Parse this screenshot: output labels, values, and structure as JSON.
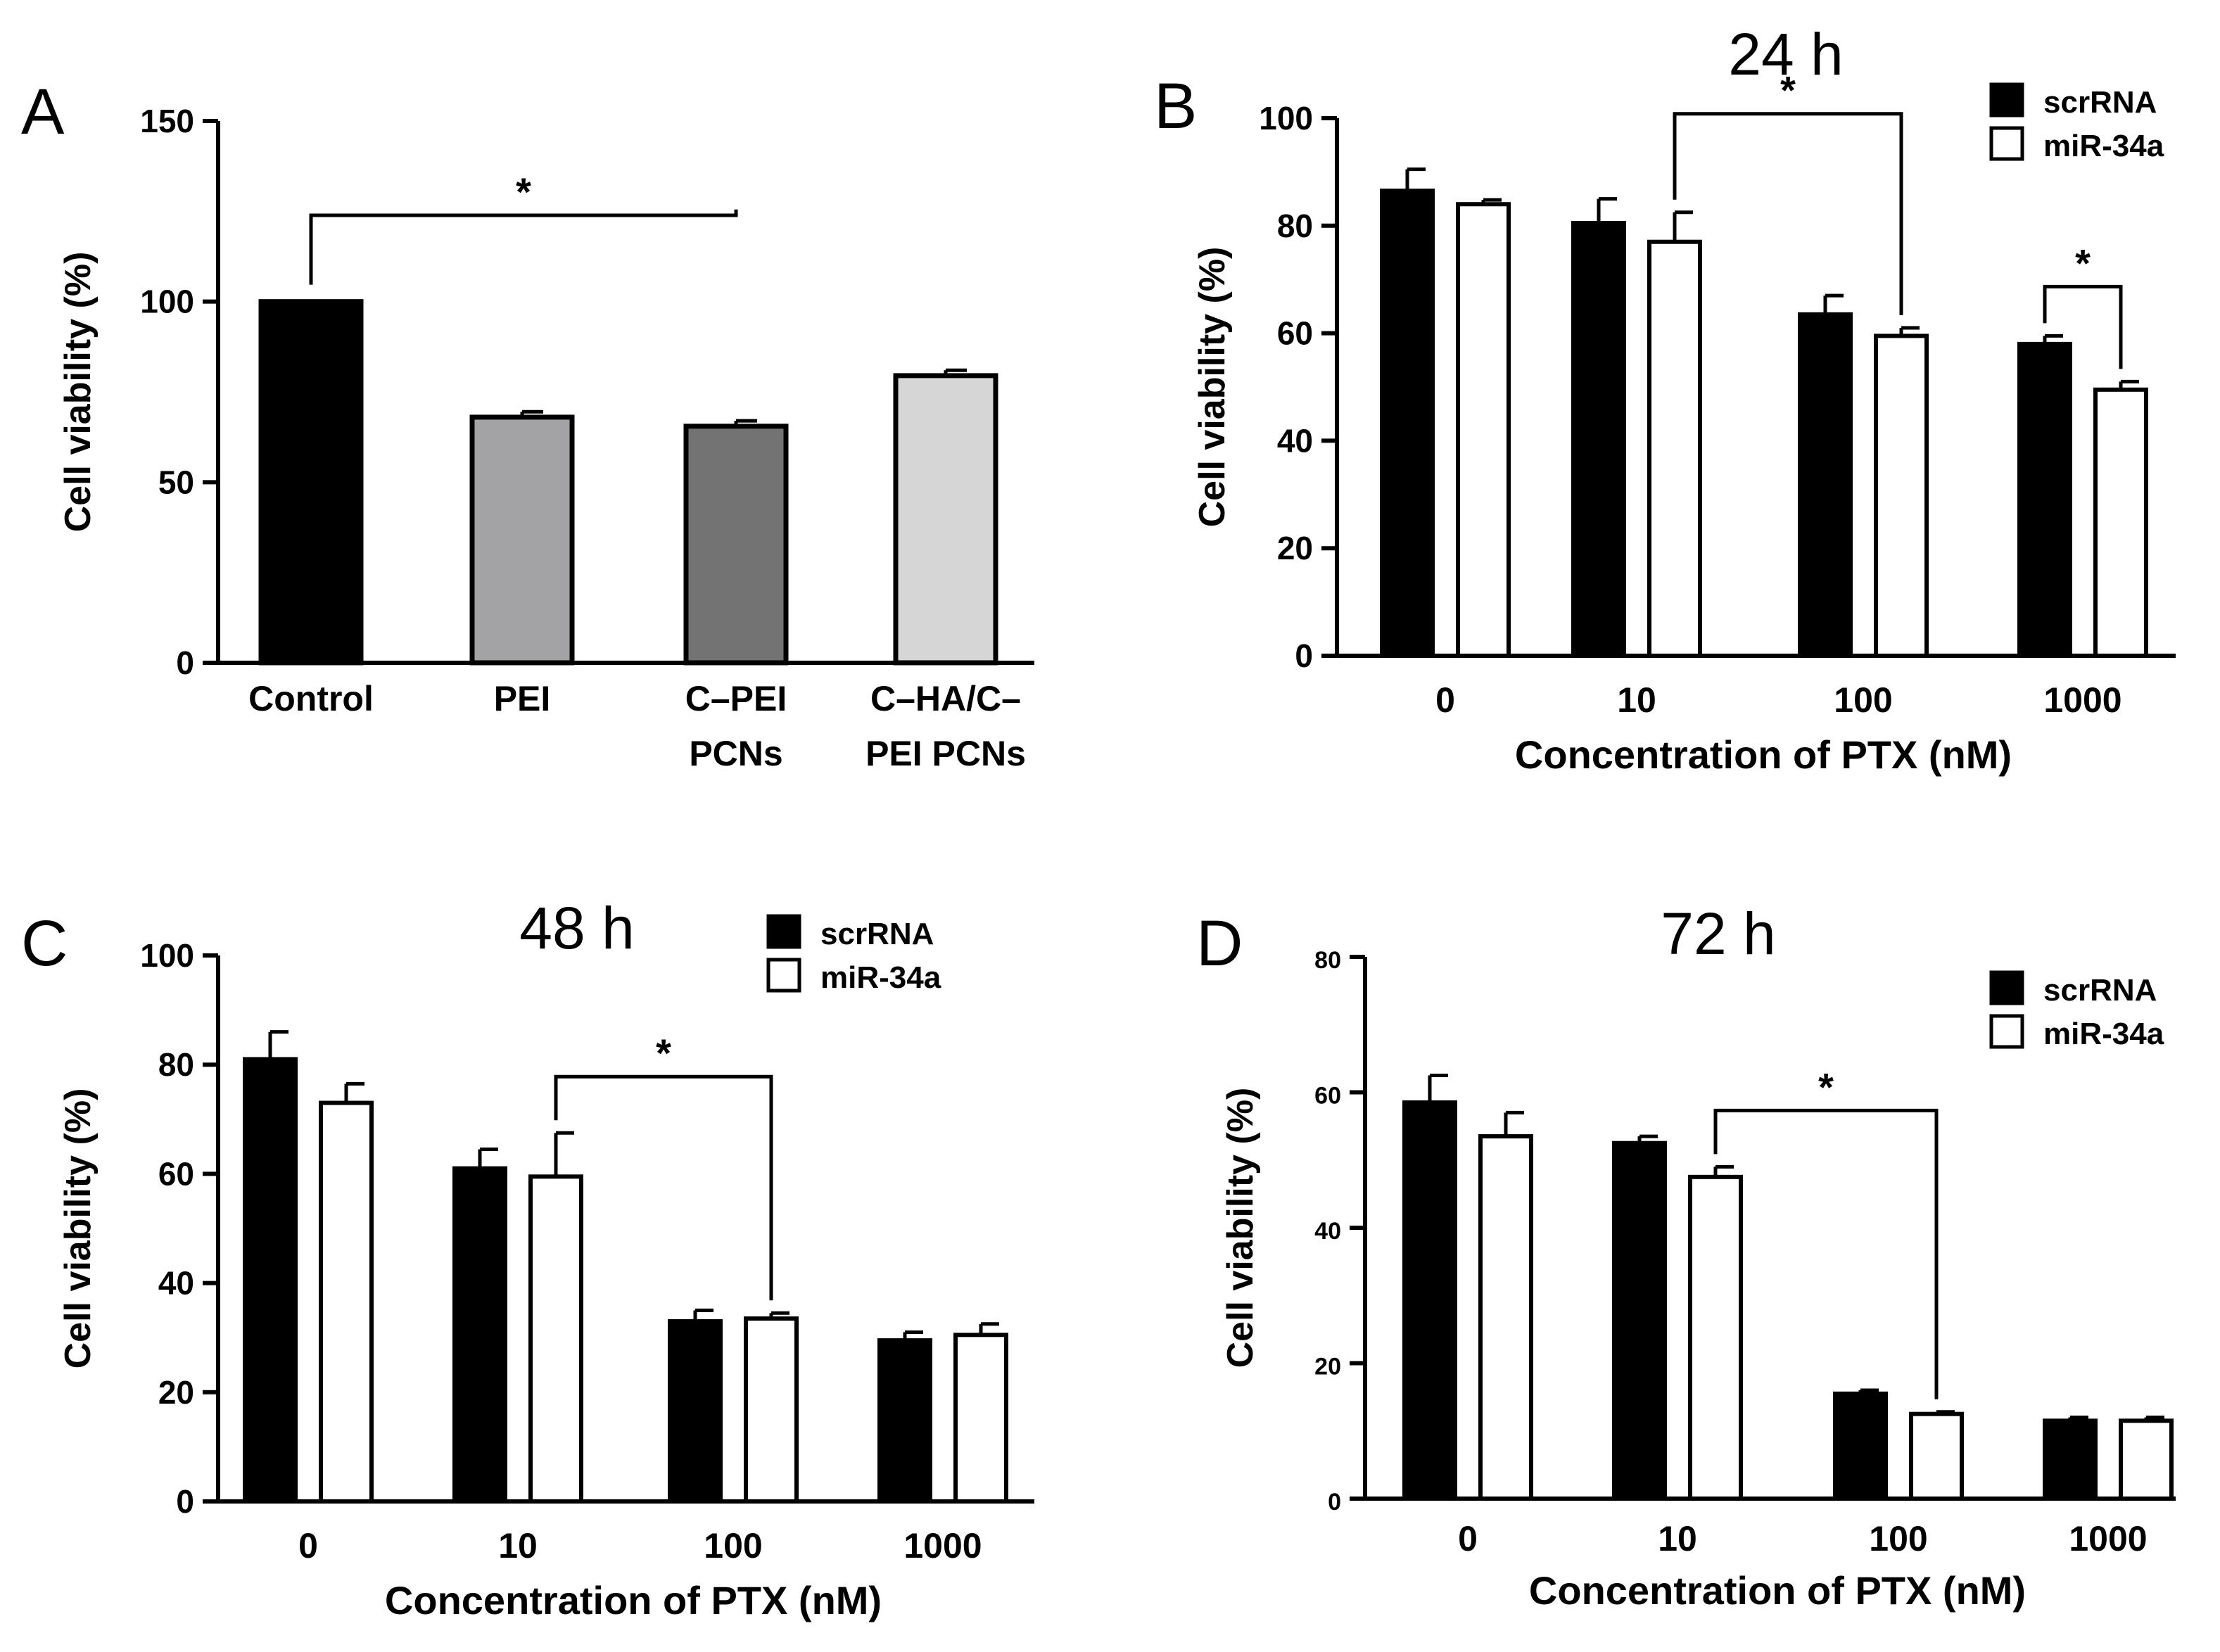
{
  "chart_data": [
    {
      "panel": "A",
      "type": "bar",
      "title": "",
      "ylabel": "Cell viability (%)",
      "xlabel": "",
      "ylim": [
        0,
        150
      ],
      "yticks": [
        "0",
        "50",
        "100",
        "150"
      ],
      "categories": [
        [
          "Control"
        ],
        [
          "PEI"
        ],
        [
          "C–PEI",
          "PCNs"
        ],
        [
          "C–HA/C–",
          "PEI PCNs"
        ]
      ],
      "values": [
        100,
        68,
        65.5,
        79.5
      ],
      "errors": [
        0,
        1.5,
        1.5,
        1.5
      ],
      "colors": [
        "#000000",
        "#a3a3a5",
        "#737373",
        "#d6d6d6"
      ],
      "significance": [
        {
          "from": 0,
          "to": 2,
          "label": "*"
        }
      ]
    },
    {
      "panel": "B",
      "type": "bar",
      "title": "24 h",
      "ylabel": "Cell viability (%)",
      "xlabel": "Concentration of PTX (nM)",
      "ylim": [
        0,
        100
      ],
      "yticks": [
        "0",
        "20",
        "40",
        "60",
        "80",
        "100"
      ],
      "categories": [
        "0",
        "10",
        "100",
        "1000"
      ],
      "legend": [
        "scrRNA",
        "miR-34a"
      ],
      "series": [
        {
          "name": "scrRNA",
          "values": [
            86.5,
            80.5,
            63.5,
            58
          ],
          "errors": [
            4,
            4.5,
            3.5,
            1.5
          ]
        },
        {
          "name": "miR-34a",
          "values": [
            84,
            77,
            59.5,
            49.5
          ],
          "errors": [
            0.8,
            5.5,
            1.5,
            1.5
          ]
        }
      ],
      "significance": [
        {
          "from": [
            1,
            1
          ],
          "to": [
            2,
            1
          ],
          "label": "*"
        },
        {
          "from": [
            3,
            0
          ],
          "to": [
            3,
            1
          ],
          "label": "*"
        }
      ]
    },
    {
      "panel": "C",
      "type": "bar",
      "title": "48 h",
      "ylabel": "Cell viability (%)",
      "xlabel": "Concentration of PTX (nM)",
      "ylim": [
        0,
        100
      ],
      "yticks": [
        "0",
        "20",
        "40",
        "60",
        "80",
        "100"
      ],
      "categories": [
        "0",
        "10",
        "100",
        "1000"
      ],
      "legend": [
        "scrRNA",
        "miR-34a"
      ],
      "series": [
        {
          "name": "scrRNA",
          "values": [
            81,
            61,
            33,
            29.5
          ],
          "errors": [
            5,
            3.5,
            2,
            1.5
          ]
        },
        {
          "name": "miR-34a",
          "values": [
            73,
            59.5,
            33.5,
            30.5
          ],
          "errors": [
            3.5,
            8,
            1,
            2
          ]
        }
      ],
      "significance": [
        {
          "from": [
            1,
            1
          ],
          "to": [
            2,
            1
          ],
          "label": "*"
        }
      ]
    },
    {
      "panel": "D",
      "type": "bar",
      "title": "72 h",
      "ylabel": "Cell viability (%)",
      "xlabel": "Concentration of PTX (nM)",
      "ylim": [
        0,
        80
      ],
      "yticks": [
        "0",
        "20",
        "40",
        "60",
        "80"
      ],
      "categories": [
        "0",
        "10",
        "100",
        "1000"
      ],
      "legend": [
        "scrRNA",
        "miR-34a"
      ],
      "series": [
        {
          "name": "scrRNA",
          "values": [
            58.5,
            52.5,
            15.5,
            11.5
          ],
          "errors": [
            4,
            1,
            0.5,
            0.5
          ]
        },
        {
          "name": "miR-34a",
          "values": [
            53.5,
            47.5,
            12.5,
            11.5
          ],
          "errors": [
            3.5,
            1.5,
            0.3,
            0.5
          ]
        }
      ],
      "significance": [
        {
          "from": [
            1,
            1
          ],
          "to": [
            2,
            1
          ],
          "label": "*"
        }
      ]
    }
  ]
}
